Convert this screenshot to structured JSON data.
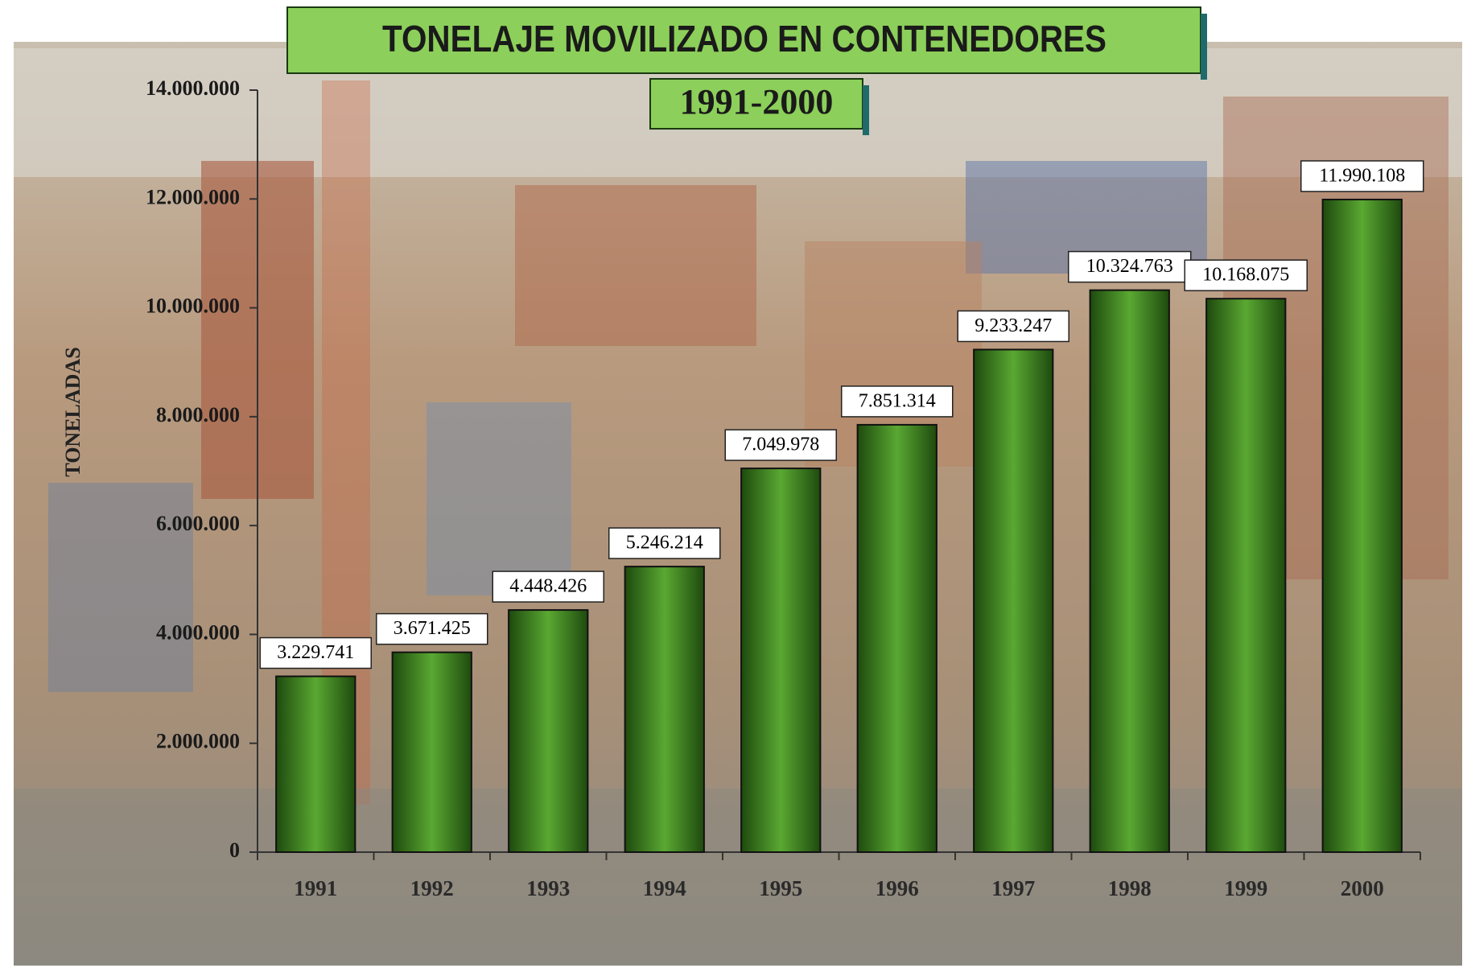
{
  "chart_data": {
    "type": "bar",
    "title": "TONELAJE MOVILIZADO EN CONTENEDORES",
    "subtitle": "1991-2000",
    "y_label": "TONELADAS",
    "categories": [
      "1991",
      "1992",
      "1993",
      "1994",
      "1995",
      "1996",
      "1997",
      "1998",
      "1999",
      "2000"
    ],
    "values": [
      3229741,
      3671425,
      4448426,
      5246214,
      7049978,
      7851314,
      9233247,
      10324763,
      10168075,
      11990108
    ],
    "value_labels": [
      "3.229.741",
      "3.671.425",
      "4.448.426",
      "5.246.214",
      "7.049.978",
      "7.851.314",
      "9.233.247",
      "10.324.763",
      "10.168.075",
      "11.990.108"
    ],
    "color": "#5aa832",
    "ylim": [
      0,
      14000000
    ],
    "yticks": [
      0,
      {
        "value": 2000000,
        "label": "2.000.000"
      },
      {
        "value": 4000000,
        "label": "4.000.000"
      },
      {
        "value": 6000000,
        "label": "6.000.000"
      },
      {
        "value": 8000000,
        "label": "8.000.000"
      },
      {
        "value": 10000000,
        "label": "10.000.000"
      },
      {
        "value": 12000000,
        "label": "12.000.000"
      },
      {
        "value": 14000000,
        "label": "14.000.000"
      }
    ],
    "grid": false
  }
}
